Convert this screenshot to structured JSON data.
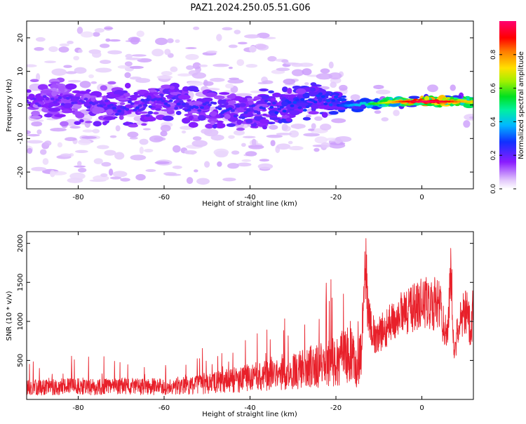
{
  "title": "PAZ1.2024.250.05.51.G06",
  "chart_data": [
    {
      "type": "heatmap",
      "xlabel": "Height of straight line (km)",
      "ylabel": "Frequency (Hz)",
      "xlim": [
        -92,
        12
      ],
      "ylim": [
        -25,
        25
      ],
      "xticks": [
        -80,
        -60,
        -40,
        -20,
        0
      ],
      "yticks": [
        -20,
        -10,
        0,
        10,
        20
      ],
      "grid": false,
      "colorbar": {
        "label": "Normalized spectral amplitude",
        "range": [
          0,
          1
        ],
        "ticks": [
          0.0,
          0.2,
          0.4,
          0.6,
          0.8
        ]
      },
      "ridge": [
        {
          "x": -90,
          "freq": 1.5,
          "amp": 0.2
        },
        {
          "x": -80,
          "freq": 0.5,
          "amp": 0.22
        },
        {
          "x": -70,
          "freq": -1.0,
          "amp": 0.25
        },
        {
          "x": -60,
          "freq": 1.0,
          "amp": 0.25
        },
        {
          "x": -50,
          "freq": -1.0,
          "amp": 0.25
        },
        {
          "x": -40,
          "freq": -2.0,
          "amp": 0.25
        },
        {
          "x": -30,
          "freq": 0.0,
          "amp": 0.3
        },
        {
          "x": -25,
          "freq": 2.0,
          "amp": 0.3
        },
        {
          "x": -20,
          "freq": 0.0,
          "amp": 0.32
        },
        {
          "x": -15,
          "freq": 0.0,
          "amp": 0.4
        },
        {
          "x": -10,
          "freq": 0.5,
          "amp": 0.55
        },
        {
          "x": -5,
          "freq": 1.0,
          "amp": 0.8
        },
        {
          "x": 0,
          "freq": 1.0,
          "amp": 0.95
        },
        {
          "x": 5,
          "freq": 1.0,
          "amp": 0.9
        },
        {
          "x": 10,
          "freq": 1.0,
          "amp": 0.7
        }
      ]
    },
    {
      "type": "line",
      "xlabel": "Height of straight line (km)",
      "ylabel": "SNR (10 * v/v)",
      "xlim": [
        -92,
        12
      ],
      "ylim": [
        0,
        2150
      ],
      "xticks": [
        -80,
        -60,
        -40,
        -20,
        0
      ],
      "yticks": [
        500,
        1000,
        1500,
        2000
      ],
      "grid": false,
      "series": [
        {
          "color": "#e8202a",
          "x": [
            -92,
            -85,
            -80,
            -75,
            -70,
            -65,
            -60,
            -55,
            -50,
            -45,
            -42,
            -40,
            -38,
            -35,
            -32,
            -30,
            -28,
            -25,
            -22,
            -20,
            -18,
            -17,
            -16,
            -15,
            -14,
            -13.3,
            -12.5,
            -11,
            -10,
            -8,
            -6,
            -4,
            -2,
            0,
            2,
            4,
            5,
            6,
            6.8,
            7.5,
            9,
            10.5,
            11.5,
            12
          ],
          "values": [
            150,
            160,
            170,
            160,
            170,
            160,
            170,
            180,
            200,
            240,
            260,
            280,
            300,
            310,
            330,
            340,
            390,
            420,
            450,
            500,
            550,
            620,
            550,
            420,
            700,
            1900,
            1100,
            800,
            820,
            950,
            1050,
            1100,
            1150,
            1250,
            1250,
            1200,
            1000,
            800,
            1700,
            650,
            1050,
            1100,
            850,
            1300
          ]
        }
      ]
    }
  ]
}
